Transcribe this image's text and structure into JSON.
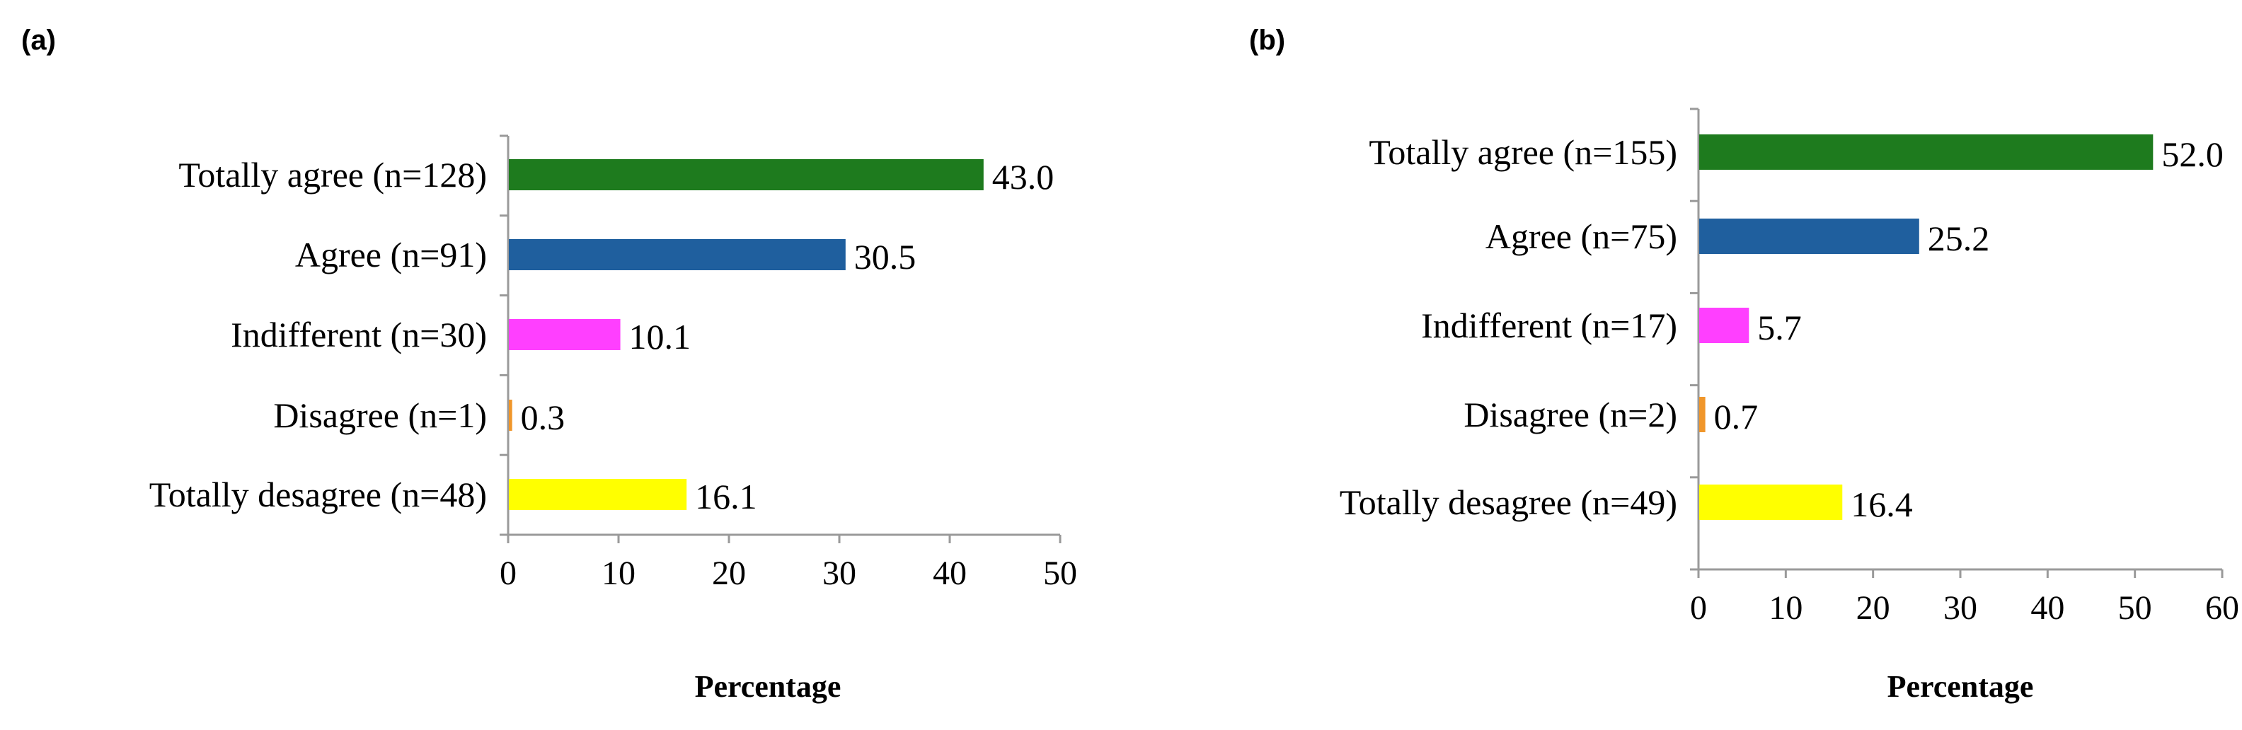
{
  "chart_data": [
    {
      "type": "bar",
      "orientation": "horizontal",
      "panel_label": "(a)",
      "title": "",
      "xlabel": "Percentage",
      "ylabel": "",
      "xlim": [
        0,
        50
      ],
      "xticks": [
        "0",
        "10",
        "20",
        "30",
        "40",
        "50"
      ],
      "grid": false,
      "categories": [
        "Totally agree (n=128)",
        "Agree (n=91)",
        "Indifferent (n=30)",
        "Disagree (n=1)",
        "Totally desagree (n=48)"
      ],
      "values": [
        43.0,
        30.5,
        10.1,
        0.3,
        16.1
      ],
      "value_labels": [
        "43.0",
        "30.5",
        "10.1",
        "0.3",
        "16.1"
      ],
      "colors": [
        "#1e7b1e",
        "#1f5f9e",
        "#ff3fff",
        "#f0962a",
        "#ffff00"
      ]
    },
    {
      "type": "bar",
      "orientation": "horizontal",
      "panel_label": "(b)",
      "title": "",
      "xlabel": "Percentage",
      "ylabel": "",
      "xlim": [
        0,
        60
      ],
      "xticks": [
        "0",
        "10",
        "20",
        "30",
        "40",
        "50",
        "60"
      ],
      "grid": false,
      "categories": [
        "Totally agree (n=155)",
        "Agree (n=75)",
        "Indifferent (n=17)",
        "Disagree (n=2)",
        "Totally desagree (n=49)"
      ],
      "values": [
        52.0,
        25.2,
        5.7,
        0.7,
        16.4
      ],
      "value_labels": [
        "52.0",
        "25.2",
        "5.7",
        "0.7",
        "16.4"
      ],
      "colors": [
        "#1e7b1e",
        "#1f5f9e",
        "#ff3fff",
        "#f0962a",
        "#ffff00"
      ]
    }
  ]
}
